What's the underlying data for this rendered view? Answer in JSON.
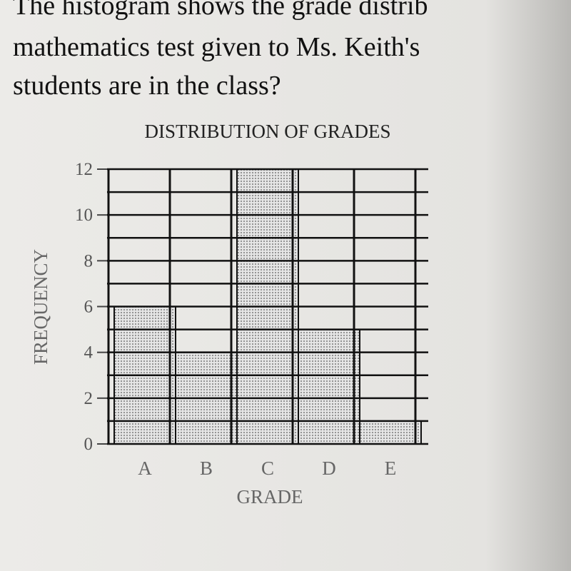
{
  "question": [
    "The histogram shows the grade distrib",
    "mathematics test given to Ms. Keith's",
    "students are in the class?"
  ],
  "chart_data": {
    "type": "bar",
    "title": "DISTRIBUTION OF GRADES",
    "x_label": "GRADE",
    "y_label": "FREQUENCY",
    "categories": [
      "A",
      "B",
      "C",
      "D",
      "E"
    ],
    "values": [
      6,
      4,
      12,
      5,
      1
    ],
    "color": "#8c8c8c",
    "ylim": [
      0,
      12
    ],
    "yticks": [
      0,
      2,
      4,
      6,
      8,
      10,
      12
    ],
    "minor_yticks": [
      1,
      3,
      5,
      7,
      9,
      11
    ],
    "grid": true
  }
}
